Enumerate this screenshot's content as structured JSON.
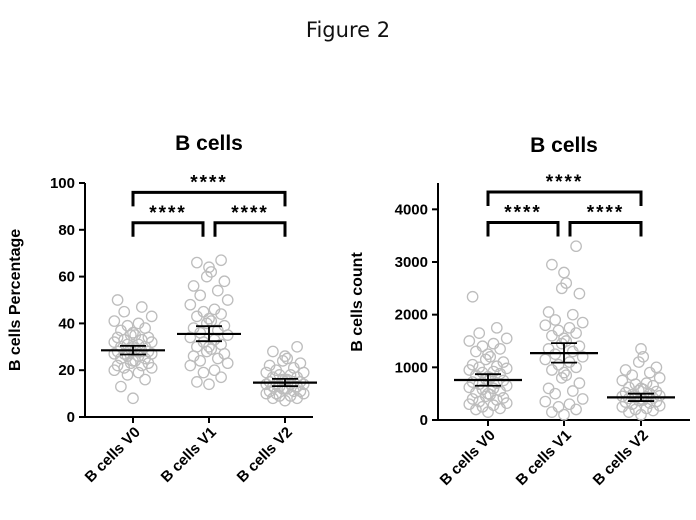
{
  "figure_title": "Figure 2",
  "chart_data": [
    {
      "type": "scatter",
      "title": "B cells",
      "ylabel": "B cells Percentage",
      "xlabel": "",
      "ylim": [
        0,
        100
      ],
      "yticks": [
        0,
        20,
        40,
        60,
        80,
        100
      ],
      "categories": [
        "B cells V0",
        "B cells V1",
        "B cells V2"
      ],
      "means": [
        28.5,
        35.5,
        14.7
      ],
      "error": [
        {
          "low": 26.7,
          "high": 30.4
        },
        {
          "low": 32.4,
          "high": 38.8
        },
        {
          "low": 13.2,
          "high": 16.3
        }
      ],
      "points": [
        [
          8,
          13,
          16,
          18,
          19,
          20,
          21,
          21,
          22,
          22,
          23,
          23,
          24,
          24,
          25,
          25,
          26,
          26,
          27,
          27,
          27,
          28,
          28,
          28,
          29,
          29,
          30,
          30,
          30,
          31,
          31,
          32,
          32,
          33,
          33,
          34,
          34,
          35,
          35,
          36,
          37,
          38,
          39,
          40,
          41,
          43,
          45,
          47,
          50
        ],
        [
          14,
          15,
          17,
          19,
          20,
          22,
          23,
          24,
          25,
          26,
          27,
          28,
          29,
          30,
          30,
          31,
          32,
          33,
          34,
          35,
          36,
          37,
          38,
          39,
          40,
          41,
          42,
          43,
          44,
          45,
          46,
          48,
          50,
          52,
          54,
          56,
          58,
          60,
          62,
          64,
          66,
          67
        ],
        [
          7,
          8,
          8,
          9,
          9,
          10,
          10,
          10,
          11,
          11,
          11,
          12,
          12,
          12,
          13,
          13,
          13,
          14,
          14,
          14,
          14,
          15,
          15,
          15,
          16,
          16,
          16,
          17,
          17,
          18,
          18,
          19,
          19,
          20,
          21,
          22,
          23,
          24,
          25,
          26,
          28,
          30
        ]
      ],
      "significance": [
        {
          "from": 0,
          "to": 2,
          "label": "****",
          "y": 96
        },
        {
          "from": 0,
          "to": 1,
          "label": "****",
          "y": 83
        },
        {
          "from": 1,
          "to": 2,
          "label": "****",
          "y": 83
        }
      ]
    },
    {
      "type": "scatter",
      "title": "B cells",
      "ylabel": "B cells count",
      "xlabel": "",
      "ylim": [
        0,
        4500
      ],
      "yticks": [
        0,
        1000,
        2000,
        3000,
        4000
      ],
      "categories": [
        "B cells V0",
        "B cells V1",
        "B cells V2"
      ],
      "means": [
        760,
        1270,
        430
      ],
      "error": [
        {
          "low": 650,
          "high": 870
        },
        {
          "low": 1090,
          "high": 1460
        },
        {
          "low": 360,
          "high": 500
        }
      ],
      "points": [
        [
          150,
          200,
          220,
          250,
          280,
          300,
          320,
          350,
          380,
          400,
          420,
          450,
          480,
          500,
          520,
          550,
          580,
          600,
          620,
          650,
          680,
          700,
          720,
          750,
          780,
          800,
          820,
          850,
          880,
          900,
          920,
          950,
          980,
          1000,
          1020,
          1050,
          1100,
          1150,
          1200,
          1250,
          1300,
          1350,
          1400,
          1450,
          1500,
          1550,
          1650,
          1750,
          2340
        ],
        [
          100,
          150,
          200,
          250,
          300,
          350,
          400,
          500,
          550,
          600,
          700,
          800,
          850,
          900,
          950,
          1000,
          1050,
          1100,
          1150,
          1200,
          1250,
          1300,
          1350,
          1400,
          1450,
          1500,
          1550,
          1600,
          1650,
          1700,
          1750,
          1800,
          1850,
          1900,
          2000,
          2050,
          2400,
          2500,
          2600,
          2800,
          2950,
          3300
        ],
        [
          100,
          150,
          180,
          200,
          220,
          250,
          270,
          300,
          320,
          340,
          350,
          370,
          380,
          400,
          410,
          420,
          430,
          440,
          450,
          460,
          480,
          500,
          520,
          540,
          560,
          580,
          600,
          620,
          650,
          680,
          700,
          750,
          800,
          850,
          900,
          950,
          1000,
          1100,
          1200,
          1350
        ]
      ],
      "significance": [
        {
          "from": 0,
          "to": 2,
          "label": "****",
          "y": 4330
        },
        {
          "from": 0,
          "to": 1,
          "label": "****",
          "y": 3750
        },
        {
          "from": 1,
          "to": 2,
          "label": "****",
          "y": 3750
        }
      ]
    }
  ]
}
